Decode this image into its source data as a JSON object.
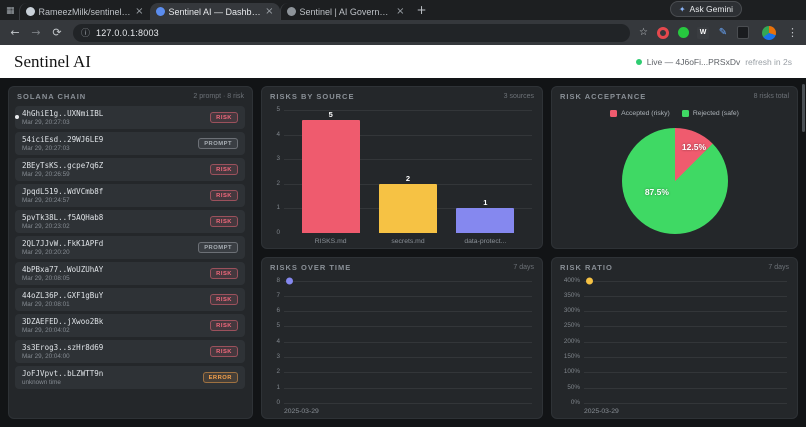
{
  "browser": {
    "tabs": [
      {
        "title": "RameezMilk/sentinel-ai",
        "active": false
      },
      {
        "title": "Sentinel AI — Dashboard",
        "active": true
      },
      {
        "title": "Sentinel | AI Governance",
        "active": false
      }
    ],
    "ask_gemini_label": "Ask Gemini",
    "url": "127.0.0.1:8003",
    "icons": {
      "tab_search": "▦",
      "close": "×",
      "new_tab": "+",
      "sparkle": "✦",
      "back": "←",
      "forward": "→",
      "reload": "⟳",
      "site_info": "ⓘ",
      "bookmark": "☆",
      "pen": "✎",
      "wiki_letter": "W",
      "menu": "⋮"
    }
  },
  "site": {
    "brand": "Sentinel AI",
    "live_text": "Live — 4J6oFi...PRSxDv",
    "refresh_text": "refresh in 2s"
  },
  "panels": {
    "solana": {
      "title": "SOLANA CHAIN",
      "meta": "2 prompt · 8 risk",
      "items": [
        {
          "hash": "4hGhiE1g..UXNmiIBL",
          "time": "Mar 29, 20:27:03",
          "badge": "RISK"
        },
        {
          "hash": "54iciEsd..29WJ6LE9",
          "time": "Mar 29, 20:27:03",
          "badge": "PROMPT"
        },
        {
          "hash": "2BEyTsKS..gcpe7q6Z",
          "time": "Mar 29, 20:26:59",
          "badge": "RISK"
        },
        {
          "hash": "JpqdL519..WdVCmb8f",
          "time": "Mar 29, 20:24:57",
          "badge": "RISK"
        },
        {
          "hash": "5pvTk38L..f5AQHab8",
          "time": "Mar 29, 20:23:02",
          "badge": "RISK"
        },
        {
          "hash": "2QL7JJvW..FkK1APFd",
          "time": "Mar 29, 20:20:20",
          "badge": "PROMPT"
        },
        {
          "hash": "4bPBxa77..WoUZUhAY",
          "time": "Mar 29, 20:08:05",
          "badge": "RISK"
        },
        {
          "hash": "44oZL36P..GXF1gBuY",
          "time": "Mar 29, 20:08:01",
          "badge": "RISK"
        },
        {
          "hash": "3DZAEFED..jXwoo2Bk",
          "time": "Mar 29, 20:04:02",
          "badge": "RISK"
        },
        {
          "hash": "3s3Erog3..szHr8d69",
          "time": "Mar 29, 20:04:00",
          "badge": "RISK"
        },
        {
          "hash": "JoFJVpvt..bLZWTT9n",
          "time": "unknown time",
          "badge": "ERROR"
        }
      ]
    },
    "sources": {
      "title": "RISKS BY SOURCE",
      "meta": "3 sources"
    },
    "acceptance": {
      "title": "RISK ACCEPTANCE",
      "meta": "8 risks total"
    },
    "over_time": {
      "title": "RISKS OVER TIME",
      "meta": "7 days"
    },
    "ratio": {
      "title": "RISK RATIO",
      "meta": "7 days"
    }
  },
  "chart_data": [
    {
      "type": "bar",
      "title": "RISKS BY SOURCE",
      "categories": [
        "RISKS.md",
        "secrets.md",
        "data-protect..."
      ],
      "values": [
        5,
        2,
        1
      ],
      "colors": [
        "#ef5b6e",
        "#f6c244",
        "#8588ef"
      ],
      "yticks": [
        "5",
        "4",
        "3",
        "2",
        "1",
        "0"
      ],
      "ymax": 5
    },
    {
      "type": "pie",
      "title": "RISK ACCEPTANCE",
      "legend": [
        {
          "label": "Accepted (risky)",
          "color": "#ef5b6e"
        },
        {
          "label": "Rejected (safe)",
          "color": "#3fd964"
        }
      ],
      "values": [
        12.5,
        87.5
      ],
      "colors": [
        "#ef5b6e",
        "#3fd964"
      ],
      "slice_labels": [
        "12.5%",
        "87.5%"
      ]
    },
    {
      "type": "line",
      "title": "RISKS OVER TIME",
      "x": [
        "2025-03-29"
      ],
      "values": [
        8
      ],
      "ymax": 8,
      "yticks": [
        "8",
        "7",
        "6",
        "5",
        "4",
        "3",
        "2",
        "1",
        "0"
      ],
      "color": "#8588ef"
    },
    {
      "type": "line",
      "title": "RISK RATIO",
      "x": [
        "2025-03-29"
      ],
      "values": [
        400
      ],
      "ymax": 400,
      "yticks": [
        "400%",
        "350%",
        "300%",
        "250%",
        "200%",
        "150%",
        "100%",
        "50%",
        "0%"
      ],
      "color": "#f6c244"
    }
  ]
}
